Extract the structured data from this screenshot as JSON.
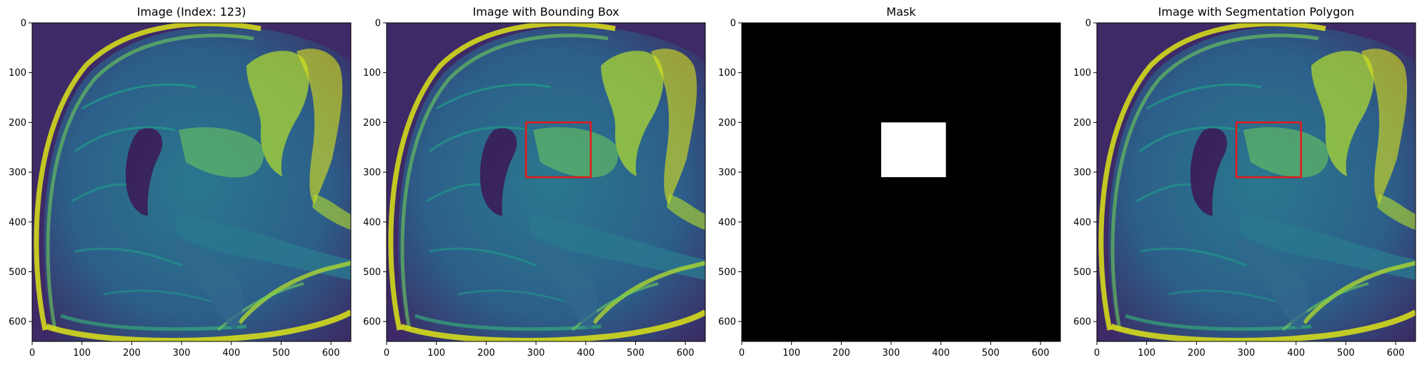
{
  "figure": {
    "panels": [
      {
        "id": "image",
        "title": "Image (Index: 123)",
        "kind": "mri",
        "show_box": false
      },
      {
        "id": "bbox",
        "title": "Image with Bounding Box",
        "kind": "mri",
        "show_box": true
      },
      {
        "id": "mask",
        "title": "Mask",
        "kind": "mask",
        "show_box": false
      },
      {
        "id": "polygon",
        "title": "Image with Segmentation Polygon",
        "kind": "mri",
        "show_box": true
      }
    ],
    "axes": {
      "xlim": [
        0,
        640
      ],
      "ylim": [
        640,
        0
      ],
      "x_ticks": [
        0,
        100,
        200,
        300,
        400,
        500,
        600
      ],
      "y_ticks": [
        0,
        100,
        200,
        300,
        400,
        500,
        600
      ],
      "x_tick_labels": [
        "0",
        "100",
        "200",
        "300",
        "400",
        "500",
        "600"
      ],
      "y_tick_labels": [
        "0",
        "100",
        "200",
        "300",
        "400",
        "500",
        "600"
      ]
    },
    "region": {
      "x": [
        280,
        410
      ],
      "y": [
        200,
        310
      ]
    },
    "colors": {
      "box": "#e41a1c",
      "mask_background": "#000000",
      "mask_region": "#ffffff",
      "image_dark": "#3b1c56",
      "image_mid": "#26828e",
      "image_bright": "#dde318"
    },
    "colormap": "viridis"
  }
}
